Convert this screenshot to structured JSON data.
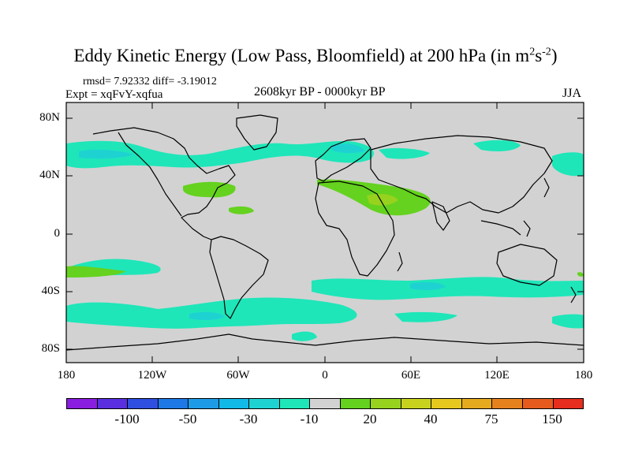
{
  "title": {
    "main": "Eddy Kinetic Energy (Low Pass, Bloomfield) at 200 hPa (in m",
    "sup1": "2",
    "mid": "s",
    "sup2": "-2",
    "end": ")"
  },
  "stats_text": "rmsd= 7.92332 diff= -3.19012",
  "expt_text": "Expt = xqFvY-xqfua",
  "period_text": "2608kyr BP - 0000kyr BP",
  "season_text": "JJA",
  "lat_labels": [
    "80N",
    "40N",
    "0",
    "40S",
    "80S"
  ],
  "lon_labels": [
    "180",
    "120W",
    "60W",
    "0",
    "60E",
    "120E",
    "180"
  ],
  "colorbar": {
    "colors": [
      "#8a1ee0",
      "#5a2fe0",
      "#2f4fe0",
      "#1e78e6",
      "#1e9be6",
      "#10b9e6",
      "#1ed2d2",
      "#1ee6b9",
      "#d2d2d2",
      "#64d21e",
      "#96d21e",
      "#c8d21e",
      "#e6c81e",
      "#e6aa1e",
      "#e6821e",
      "#e65a1e",
      "#e62d1e"
    ],
    "labels": [
      "-100",
      "-50",
      "-30",
      "-10",
      "20",
      "40",
      "75",
      "150"
    ]
  },
  "colors": {
    "land_ocean": "#d2d2d2",
    "negative_anomaly": "#1ee6b9",
    "stronger_negative": "#1ed2d2",
    "positive_anomaly": "#64d21e",
    "stronger_positive": "#96d21e",
    "coastline": "#000000"
  }
}
